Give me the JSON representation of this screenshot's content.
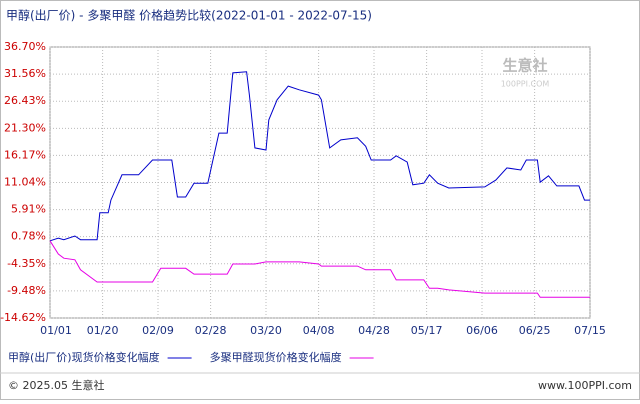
{
  "chart_data": {
    "type": "line",
    "title": "甲醇(出厂价) - 多聚甲醛 价格趋势比较(2022-01-01 - 2022-07-15)",
    "x": [
      "01/01",
      "01/04",
      "01/06",
      "01/10",
      "01/12",
      "01/18",
      "01/19",
      "01/22",
      "01/23",
      "01/27",
      "02/02",
      "02/07",
      "02/10",
      "02/14",
      "02/16",
      "02/19",
      "02/22",
      "02/27",
      "03/03",
      "03/06",
      "03/08",
      "03/13",
      "03/14",
      "03/16",
      "03/20",
      "03/21",
      "03/24",
      "03/28",
      "04/01",
      "04/08",
      "04/09",
      "04/12",
      "04/16",
      "04/22",
      "04/25",
      "04/27",
      "05/04",
      "05/06",
      "05/10",
      "05/12",
      "05/16",
      "05/18",
      "05/21",
      "05/25",
      "06/07",
      "06/11",
      "06/15",
      "06/20",
      "06/22",
      "06/26",
      "06/27",
      "06/30",
      "07/03",
      "07/11",
      "07/13",
      "07/15"
    ],
    "series": [
      {
        "name": "甲醇(出厂价)现货价格变化幅度",
        "color": "#0000cc",
        "values": [
          0,
          0.5,
          0.2,
          0.9,
          0.2,
          0.2,
          5.3,
          5.3,
          7.7,
          12.5,
          12.5,
          15.3,
          15.3,
          15.3,
          8.3,
          8.3,
          10.9,
          10.9,
          20.4,
          20.4,
          31.8,
          32.0,
          27.6,
          17.6,
          17.2,
          22.9,
          26.7,
          29.3,
          28.6,
          27.6,
          26.7,
          17.6,
          19.1,
          19.5,
          17.9,
          15.3,
          15.3,
          16.1,
          14.9,
          10.6,
          10.9,
          12.5,
          10.9,
          10.0,
          10.2,
          11.5,
          13.8,
          13.4,
          15.3,
          15.3,
          11.1,
          12.3,
          10.4,
          10.4,
          7.7,
          7.7
        ]
      },
      {
        "name": "多聚甲醛现货价格变化幅度",
        "color": "#e600e6",
        "values": [
          0,
          -2.5,
          -3.3,
          -3.6,
          -5.5,
          -7.8,
          -7.8,
          -7.8,
          -7.8,
          -7.8,
          -7.8,
          -7.8,
          -5.2,
          -5.2,
          -5.2,
          -5.2,
          -6.3,
          -6.3,
          -6.3,
          -6.3,
          -4.4,
          -4.4,
          -4.4,
          -4.4,
          -4.0,
          -4.0,
          -4.0,
          -4.0,
          -4.0,
          -4.4,
          -4.8,
          -4.8,
          -4.8,
          -4.8,
          -5.5,
          -5.5,
          -5.5,
          -7.4,
          -7.4,
          -7.4,
          -7.4,
          -9.0,
          -9.0,
          -9.3,
          -9.9,
          -9.9,
          -9.9,
          -9.9,
          -9.9,
          -9.9,
          -10.7,
          -10.7,
          -10.7,
          -10.7,
          -10.7,
          -10.7
        ]
      }
    ],
    "xlim": [
      "01/01",
      "07/15"
    ],
    "xticks": [
      "01/01",
      "01/20",
      "02/09",
      "02/28",
      "03/20",
      "04/08",
      "04/28",
      "05/17",
      "06/06",
      "06/25",
      "07/15"
    ],
    "ylim": [
      -14.62,
      36.7
    ],
    "yticks": [
      {
        "value": 36.7,
        "label": "36.70%"
      },
      {
        "value": 31.56,
        "label": "31.56%"
      },
      {
        "value": 26.43,
        "label": "26.43%"
      },
      {
        "value": 21.3,
        "label": "21.30%"
      },
      {
        "value": 16.17,
        "label": "16.17%"
      },
      {
        "value": 11.04,
        "label": "11.04%"
      },
      {
        "value": 5.91,
        "label": "5.91%"
      },
      {
        "value": 0.78,
        "label": "0.78%"
      },
      {
        "value": -4.35,
        "label": "-4.35%"
      },
      {
        "value": -9.48,
        "label": "-9.48%"
      },
      {
        "value": -14.62,
        "label": "-14.62%"
      }
    ],
    "grid": true,
    "watermark": "生意社",
    "watermark_sub": "100PPI.COM",
    "footer_left": "© 2025.05 生意社",
    "footer_right": "www.100PPI.com"
  }
}
